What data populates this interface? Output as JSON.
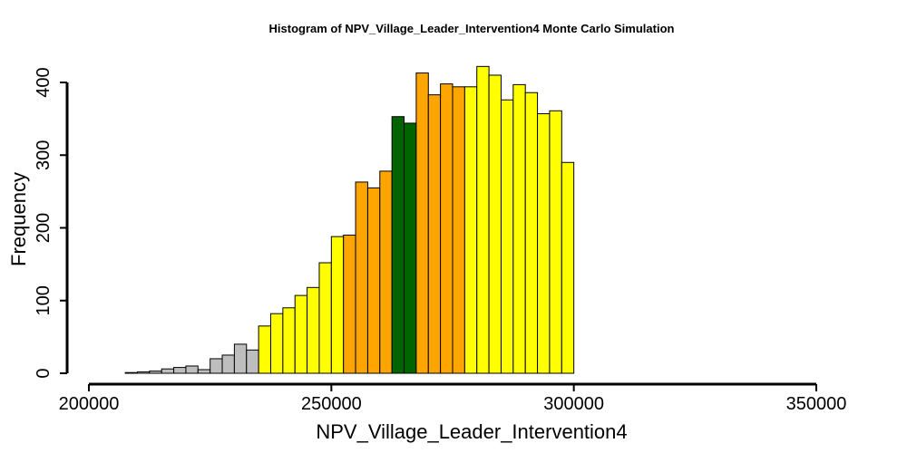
{
  "chart_data": {
    "type": "bar",
    "title": "Histogram of  NPV_Village_Leader_Intervention4  Monte Carlo Simulation",
    "xlabel": "NPV_Village_Leader_Intervention4",
    "ylabel": "Frequency",
    "xlim": [
      200000,
      350000
    ],
    "ylim": [
      0,
      400
    ],
    "bin_width": 2500,
    "x_ticks": [
      {
        "value": 200000,
        "label": "200000"
      },
      {
        "value": 250000,
        "label": "250000"
      },
      {
        "value": 300000,
        "label": "300000"
      },
      {
        "value": 350000,
        "label": "350000"
      }
    ],
    "y_ticks": [
      {
        "value": 0,
        "label": "0"
      },
      {
        "value": 100,
        "label": "100"
      },
      {
        "value": 200,
        "label": "200"
      },
      {
        "value": 300,
        "label": "300"
      },
      {
        "value": 400,
        "label": "400"
      }
    ],
    "color_bands": [
      {
        "min": 262500,
        "max": 267500,
        "color": "#006400"
      },
      {
        "min": 252500,
        "max": 277500,
        "color": "#FFA500"
      },
      {
        "min": 235000,
        "max": 300000,
        "color": "#FFFF00"
      },
      {
        "min": 0,
        "max": 999999,
        "color": "#BEBEBE"
      }
    ],
    "bins": [
      {
        "x0": 205000,
        "x1": 207500,
        "count": 0
      },
      {
        "x0": 207500,
        "x1": 210000,
        "count": 1
      },
      {
        "x0": 210000,
        "x1": 212500,
        "count": 2
      },
      {
        "x0": 212500,
        "x1": 215000,
        "count": 3
      },
      {
        "x0": 215000,
        "x1": 217500,
        "count": 6
      },
      {
        "x0": 217500,
        "x1": 220000,
        "count": 8
      },
      {
        "x0": 220000,
        "x1": 222500,
        "count": 10
      },
      {
        "x0": 222500,
        "x1": 225000,
        "count": 5
      },
      {
        "x0": 225000,
        "x1": 227500,
        "count": 20
      },
      {
        "x0": 227500,
        "x1": 230000,
        "count": 25
      },
      {
        "x0": 230000,
        "x1": 232500,
        "count": 40
      },
      {
        "x0": 232500,
        "x1": 235000,
        "count": 32
      },
      {
        "x0": 235000,
        "x1": 237500,
        "count": 65
      },
      {
        "x0": 237500,
        "x1": 240000,
        "count": 82
      },
      {
        "x0": 240000,
        "x1": 242500,
        "count": 90
      },
      {
        "x0": 242500,
        "x1": 245000,
        "count": 107
      },
      {
        "x0": 245000,
        "x1": 247500,
        "count": 118
      },
      {
        "x0": 247500,
        "x1": 250000,
        "count": 152
      },
      {
        "x0": 250000,
        "x1": 252500,
        "count": 188
      },
      {
        "x0": 252500,
        "x1": 255000,
        "count": 190
      },
      {
        "x0": 255000,
        "x1": 257500,
        "count": 263
      },
      {
        "x0": 257500,
        "x1": 260000,
        "count": 255
      },
      {
        "x0": 260000,
        "x1": 262500,
        "count": 278
      },
      {
        "x0": 262500,
        "x1": 265000,
        "count": 353
      },
      {
        "x0": 265000,
        "x1": 267500,
        "count": 344
      },
      {
        "x0": 267500,
        "x1": 270000,
        "count": 413
      },
      {
        "x0": 270000,
        "x1": 272500,
        "count": 383
      },
      {
        "x0": 272500,
        "x1": 275000,
        "count": 398
      },
      {
        "x0": 275000,
        "x1": 277500,
        "count": 394
      },
      {
        "x0": 277500,
        "x1": 280000,
        "count": 394
      },
      {
        "x0": 280000,
        "x1": 282500,
        "count": 422
      },
      {
        "x0": 282500,
        "x1": 285000,
        "count": 410
      },
      {
        "x0": 285000,
        "x1": 287500,
        "count": 376
      },
      {
        "x0": 287500,
        "x1": 290000,
        "count": 397
      },
      {
        "x0": 290000,
        "x1": 292500,
        "count": 386
      },
      {
        "x0": 292500,
        "x1": 295000,
        "count": 357
      },
      {
        "x0": 295000,
        "x1": 297500,
        "count": 361
      },
      {
        "x0": 297500,
        "x1": 300000,
        "count": 290
      }
    ]
  }
}
